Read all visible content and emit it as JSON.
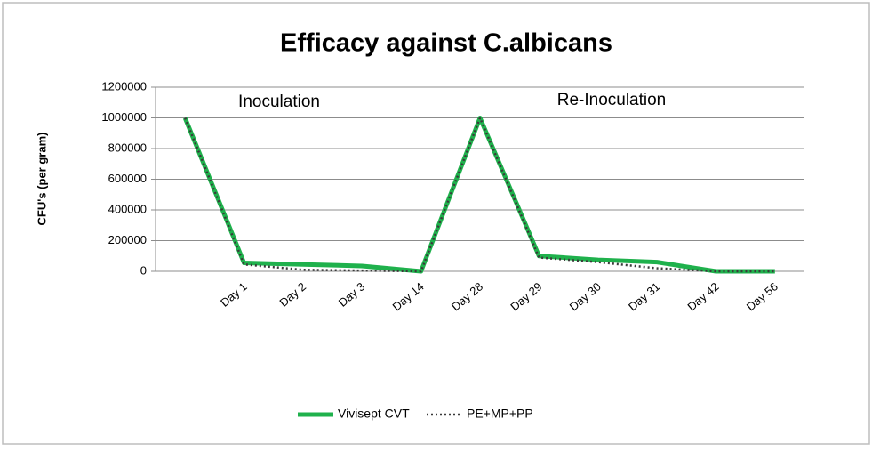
{
  "chart_data": {
    "type": "line",
    "title": "Efficacy against C.albicans",
    "y_label": "CFU's (per gram)",
    "annotations": [
      "Inoculation",
      "Re-Inoculation"
    ],
    "categories": [
      null,
      "Day 1",
      "Day 2",
      "Day 3",
      "Day 14",
      "Day 28",
      "Day 29",
      "Day 30",
      "Day 31",
      "Day 42",
      "Day 56"
    ],
    "series": [
      {
        "name": "Vivisept CVT",
        "color": "#1fb14c",
        "values": [
          1000000,
          55000,
          45000,
          35000,
          0,
          1000000,
          100000,
          75000,
          60000,
          0,
          0
        ]
      },
      {
        "name": "PE+MP+PP",
        "color": "#3a3a3a",
        "values": [
          1000000,
          45000,
          10000,
          5000,
          0,
          1000000,
          90000,
          60000,
          20000,
          0,
          0
        ]
      }
    ],
    "ylim": [
      0,
      1200000
    ],
    "yticks": [
      0,
      200000,
      400000,
      600000,
      800000,
      1000000,
      1200000
    ],
    "grid": true,
    "legend": "bottom"
  }
}
